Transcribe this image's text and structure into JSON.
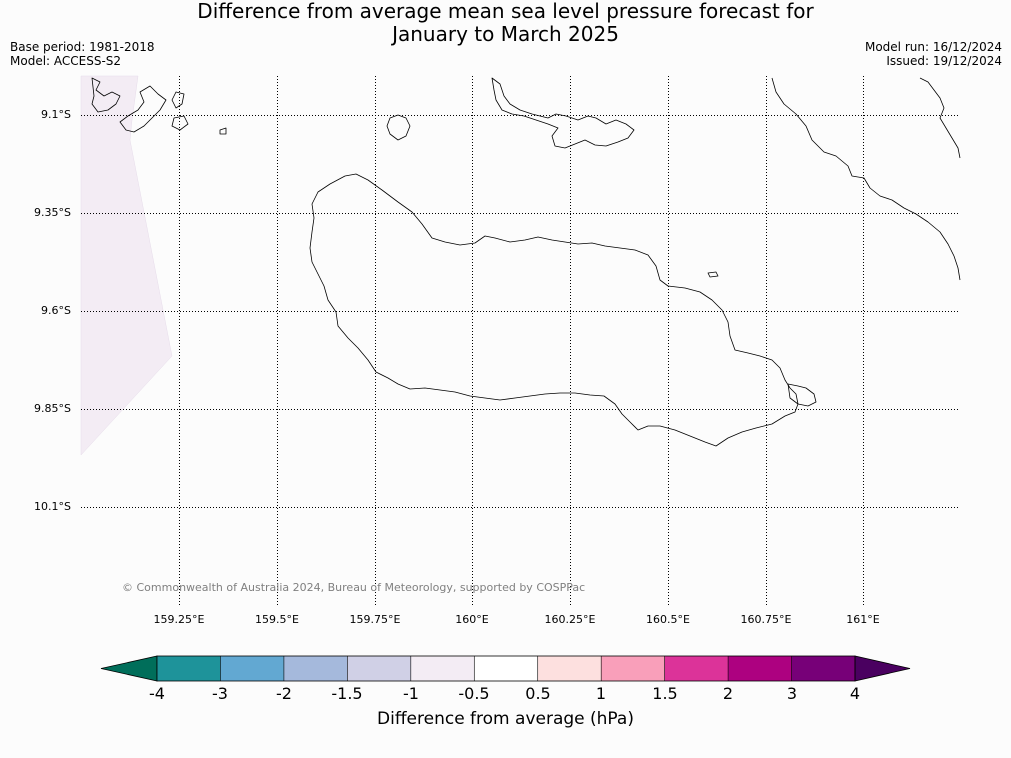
{
  "title": {
    "line1": "Difference from average mean sea level pressure forecast for",
    "line2": "January to March 2025"
  },
  "meta": {
    "base_period": "Base period: 1981-2018",
    "model": "Model: ACCESS-S2",
    "model_run": "Model run: 16/12/2024",
    "issued": "Issued: 19/12/2024"
  },
  "map": {
    "lat_labels": [
      "9.1°S",
      "9.35°S",
      "9.6°S",
      "9.85°S",
      "10.1°S"
    ],
    "lon_labels": [
      "159.25°E",
      "159.5°E",
      "159.75°E",
      "160°E",
      "160.25°E",
      "160.5°E",
      "160.75°E",
      "161°E"
    ],
    "copyright": "© Commonwealth of Australia 2024, Bureau of Meteorology, supported by COSPPac",
    "shaded_region_color": "#f3ecf4",
    "shaded_region_range": "-1 to -0.5"
  },
  "colorbar": {
    "title": "Difference from average (hPa)",
    "tick_labels": [
      "-4",
      "-3",
      "-2",
      "-1.5",
      "-1",
      "-0.5",
      "0.5",
      "1",
      "1.5",
      "2",
      "3",
      "4"
    ],
    "colors": {
      "under": "#006e5a",
      "bins": [
        "#1e939a",
        "#62a8d2",
        "#a5b9dc",
        "#d0d0e6",
        "#f3ecf4",
        "#ffffff",
        "#fde0df",
        "#f99fba",
        "#dc3399",
        "#ad0180",
        "#770078"
      ],
      "over": "#4a0060"
    }
  }
}
